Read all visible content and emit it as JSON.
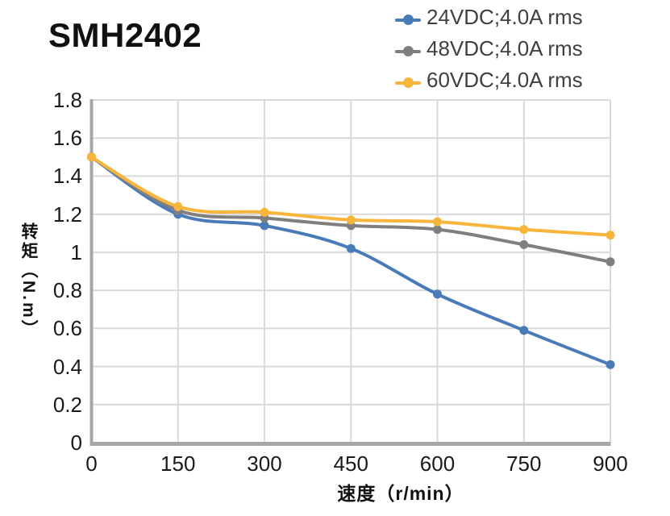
{
  "chart_data": {
    "type": "line",
    "title": "SMH2402",
    "xlabel": "速度（r/min）",
    "ylabel": "转矩（N.m）",
    "x": [
      0,
      150,
      300,
      450,
      600,
      750,
      900
    ],
    "xticks": [
      "0",
      "150",
      "300",
      "450",
      "600",
      "750",
      "900"
    ],
    "yticks": [
      "0",
      "0.2",
      "0.4",
      "0.6",
      "0.8",
      "1",
      "1.2",
      "1.4",
      "1.6",
      "1.8"
    ],
    "xlim": [
      0,
      900
    ],
    "ylim": [
      0,
      1.8
    ],
    "grid": true,
    "smooth": true,
    "legend_position": "top-right",
    "series": [
      {
        "name": "24VDC;4.0A rms",
        "color": "#4A7BB9",
        "values": [
          1.5,
          1.2,
          1.14,
          1.02,
          0.78,
          0.59,
          0.41
        ]
      },
      {
        "name": "48VDC;4.0A rms",
        "color": "#7F7F7F",
        "values": [
          1.5,
          1.22,
          1.18,
          1.14,
          1.12,
          1.04,
          0.95
        ]
      },
      {
        "name": "60VDC;4.0A rms",
        "color": "#F8B53C",
        "values": [
          1.5,
          1.24,
          1.21,
          1.17,
          1.16,
          1.12,
          1.09
        ]
      }
    ],
    "colors": {
      "gridline": "#D9D9D9",
      "axis": "#A6A6A6",
      "tick_text": "#1A1A1A",
      "legend_text": "#404040",
      "title_text": "#111111"
    }
  }
}
